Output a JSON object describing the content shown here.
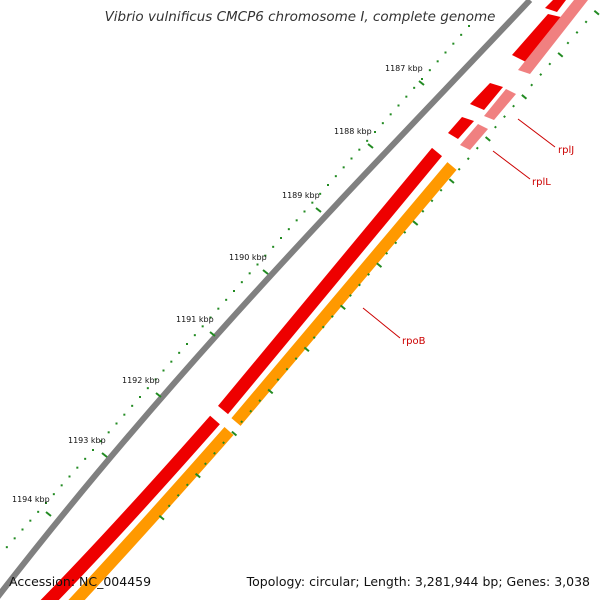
{
  "map": {
    "title": "Vibrio vulnificus CMCP6 chromosome I, complete genome",
    "accession_text": "Accession: NC_004459",
    "topology_text": "Topology: circular; Length: 3,281,944 bp; Genes: 3,038",
    "ticks": [
      {
        "kbp": 1187,
        "label": "1187 kbp"
      },
      {
        "kbp": 1188,
        "label": "1188 kbp"
      },
      {
        "kbp": 1189,
        "label": "1189 kbp"
      },
      {
        "kbp": 1190,
        "label": "1190 kbp"
      },
      {
        "kbp": 1191,
        "label": "1191 kbp"
      },
      {
        "kbp": 1192,
        "label": "1192 kbp"
      },
      {
        "kbp": 1193,
        "label": "1193 kbp"
      },
      {
        "kbp": 1194,
        "label": "1194 kbp"
      }
    ],
    "gene_labels": [
      "rplJ",
      "rplL",
      "rpoB"
    ],
    "colors": {
      "backbone": "#808080",
      "cds_track": "#ee0000",
      "cds_light": "#f08080",
      "rna_track": "#ff9900",
      "tick": "#228b22",
      "gene_label": "#cc0000"
    }
  }
}
